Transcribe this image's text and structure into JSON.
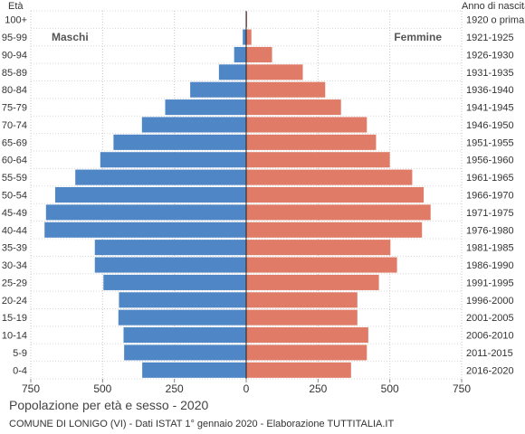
{
  "chart_data": {
    "type": "bar",
    "orientation": "horizontal-pyramid",
    "title": "Popolazione per età e sesso - 2020",
    "subtitle": "COMUNE DI LONIGO (VI) - Dati ISTAT 1° gennaio 2020 - Elaborazione TUTTITALIA.IT",
    "left_axis_label": "Età",
    "right_axis_label": "Anno di nascita",
    "x_ticks": [
      "750",
      "500",
      "250",
      "0",
      "250",
      "500",
      "750"
    ],
    "x_tick_values": [
      -750,
      -500,
      -250,
      0,
      250,
      500,
      750
    ],
    "xlim": [
      -750,
      750
    ],
    "grid": true,
    "categories": [
      "100+",
      "95-99",
      "90-94",
      "85-89",
      "80-84",
      "75-79",
      "70-74",
      "65-69",
      "60-64",
      "55-59",
      "50-54",
      "45-49",
      "40-44",
      "35-39",
      "30-34",
      "25-29",
      "20-24",
      "15-19",
      "10-14",
      "5-9",
      "0-4"
    ],
    "birth_years": [
      "1920 o prima",
      "1921-1925",
      "1926-1930",
      "1931-1935",
      "1936-1940",
      "1941-1945",
      "1946-1950",
      "1951-1955",
      "1956-1960",
      "1961-1965",
      "1966-1970",
      "1971-1975",
      "1976-1980",
      "1981-1985",
      "1986-1990",
      "1991-1995",
      "1996-2000",
      "2001-2005",
      "2006-2010",
      "2011-2015",
      "2016-2020"
    ],
    "series": [
      {
        "name": "Maschi",
        "color": "#4f86c6",
        "values": [
          1,
          12,
          42,
          95,
          195,
          282,
          363,
          462,
          508,
          595,
          665,
          697,
          702,
          527,
          527,
          497,
          443,
          445,
          427,
          425,
          362
        ]
      },
      {
        "name": "Femmine",
        "color": "#e07b67",
        "values": [
          3,
          18,
          90,
          197,
          275,
          330,
          420,
          452,
          500,
          578,
          618,
          642,
          612,
          502,
          525,
          462,
          387,
          387,
          425,
          420,
          365
        ]
      }
    ]
  }
}
